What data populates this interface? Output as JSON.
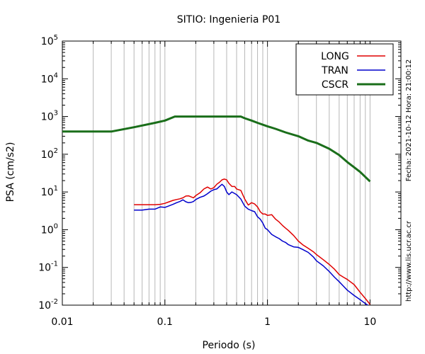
{
  "chart_data": {
    "type": "line",
    "title": "SITIO: Ingenieria P01",
    "xlabel": "Periodo (s)",
    "ylabel": "PSA (cm/s2)",
    "x_scale": "log",
    "y_scale": "log",
    "xlim": [
      0.01,
      20
    ],
    "ylim": [
      0.01,
      100000
    ],
    "x_ticks": [
      {
        "value": 0.01,
        "label": "0.01"
      },
      {
        "value": 0.1,
        "label": "0.1"
      },
      {
        "value": 1,
        "label": "1"
      },
      {
        "value": 10,
        "label": "10"
      }
    ],
    "y_ticks": [
      {
        "value": 0.01,
        "base": "10",
        "exp": "-2"
      },
      {
        "value": 0.1,
        "base": "10",
        "exp": "-1"
      },
      {
        "value": 1,
        "base": "10",
        "exp": "0"
      },
      {
        "value": 10,
        "base": "10",
        "exp": "1"
      },
      {
        "value": 100,
        "base": "10",
        "exp": "2"
      },
      {
        "value": 1000,
        "base": "10",
        "exp": "3"
      },
      {
        "value": 10000,
        "base": "10",
        "exp": "4"
      },
      {
        "value": 100000,
        "base": "10",
        "exp": "5"
      }
    ],
    "grid": "vertical-minor",
    "legend_position": "top-right",
    "side_text": [
      "Fecha: 2021-10-12  Hora: 21:00:12",
      "http://www.lis.ucr.ac.cr"
    ],
    "series": [
      {
        "name": "LONG",
        "color": "#e00000",
        "points": [
          [
            0.05,
            4.6
          ],
          [
            0.06,
            4.6
          ],
          [
            0.07,
            4.6
          ],
          [
            0.08,
            4.6
          ],
          [
            0.09,
            4.7
          ],
          [
            0.1,
            5.0
          ],
          [
            0.11,
            5.5
          ],
          [
            0.12,
            6.0
          ],
          [
            0.13,
            6.3
          ],
          [
            0.14,
            6.6
          ],
          [
            0.15,
            7.0
          ],
          [
            0.16,
            7.8
          ],
          [
            0.17,
            7.9
          ],
          [
            0.18,
            7.4
          ],
          [
            0.19,
            7.0
          ],
          [
            0.2,
            8.0
          ],
          [
            0.22,
            9.5
          ],
          [
            0.24,
            12.0
          ],
          [
            0.26,
            13.5
          ],
          [
            0.28,
            12.0
          ],
          [
            0.3,
            13.0
          ],
          [
            0.32,
            16.0
          ],
          [
            0.34,
            18.0
          ],
          [
            0.36,
            21.0
          ],
          [
            0.38,
            22.0
          ],
          [
            0.4,
            21.0
          ],
          [
            0.42,
            17.0
          ],
          [
            0.45,
            14.0
          ],
          [
            0.48,
            14.0
          ],
          [
            0.5,
            12.0
          ],
          [
            0.55,
            11.0
          ],
          [
            0.6,
            6.5
          ],
          [
            0.65,
            4.5
          ],
          [
            0.7,
            5.2
          ],
          [
            0.75,
            4.8
          ],
          [
            0.8,
            4.0
          ],
          [
            0.85,
            3.0
          ],
          [
            0.9,
            2.6
          ],
          [
            0.95,
            2.6
          ],
          [
            1.0,
            2.4
          ],
          [
            1.1,
            2.5
          ],
          [
            1.2,
            1.9
          ],
          [
            1.3,
            1.6
          ],
          [
            1.4,
            1.3
          ],
          [
            1.5,
            1.1
          ],
          [
            1.6,
            0.95
          ],
          [
            1.8,
            0.7
          ],
          [
            2.0,
            0.5
          ],
          [
            2.2,
            0.4
          ],
          [
            2.5,
            0.32
          ],
          [
            2.8,
            0.26
          ],
          [
            3.0,
            0.22
          ],
          [
            3.5,
            0.16
          ],
          [
            4.0,
            0.12
          ],
          [
            4.5,
            0.09
          ],
          [
            5.0,
            0.065
          ],
          [
            5.5,
            0.055
          ],
          [
            6.0,
            0.048
          ],
          [
            7.0,
            0.035
          ],
          [
            8.0,
            0.022
          ],
          [
            9.0,
            0.015
          ],
          [
            10.0,
            0.0105
          ]
        ]
      },
      {
        "name": "TRAN",
        "color": "#0000cc",
        "points": [
          [
            0.05,
            3.3
          ],
          [
            0.06,
            3.3
          ],
          [
            0.07,
            3.5
          ],
          [
            0.08,
            3.5
          ],
          [
            0.09,
            4.0
          ],
          [
            0.1,
            3.9
          ],
          [
            0.11,
            4.3
          ],
          [
            0.12,
            4.7
          ],
          [
            0.13,
            5.2
          ],
          [
            0.14,
            5.6
          ],
          [
            0.15,
            6.2
          ],
          [
            0.16,
            5.5
          ],
          [
            0.17,
            5.2
          ],
          [
            0.18,
            5.3
          ],
          [
            0.19,
            5.6
          ],
          [
            0.2,
            6.3
          ],
          [
            0.22,
            7.2
          ],
          [
            0.24,
            7.8
          ],
          [
            0.26,
            9.0
          ],
          [
            0.28,
            10.5
          ],
          [
            0.3,
            11.5
          ],
          [
            0.32,
            12.0
          ],
          [
            0.34,
            14.0
          ],
          [
            0.36,
            16.0
          ],
          [
            0.38,
            14.0
          ],
          [
            0.4,
            10.0
          ],
          [
            0.42,
            8.5
          ],
          [
            0.45,
            10.0
          ],
          [
            0.5,
            8.5
          ],
          [
            0.55,
            6.5
          ],
          [
            0.6,
            4.2
          ],
          [
            0.65,
            3.5
          ],
          [
            0.7,
            3.2
          ],
          [
            0.75,
            3.0
          ],
          [
            0.8,
            2.2
          ],
          [
            0.85,
            1.9
          ],
          [
            0.9,
            1.5
          ],
          [
            0.95,
            1.1
          ],
          [
            1.0,
            1.0
          ],
          [
            1.1,
            0.75
          ],
          [
            1.2,
            0.65
          ],
          [
            1.3,
            0.58
          ],
          [
            1.4,
            0.5
          ],
          [
            1.5,
            0.46
          ],
          [
            1.6,
            0.4
          ],
          [
            1.8,
            0.35
          ],
          [
            2.0,
            0.34
          ],
          [
            2.2,
            0.3
          ],
          [
            2.5,
            0.25
          ],
          [
            2.8,
            0.19
          ],
          [
            3.0,
            0.15
          ],
          [
            3.5,
            0.11
          ],
          [
            4.0,
            0.078
          ],
          [
            4.5,
            0.055
          ],
          [
            5.0,
            0.042
          ],
          [
            5.5,
            0.032
          ],
          [
            6.0,
            0.025
          ],
          [
            7.0,
            0.018
          ],
          [
            8.0,
            0.014
          ],
          [
            9.0,
            0.011
          ],
          [
            9.5,
            0.01
          ]
        ]
      },
      {
        "name": "CSCR",
        "color": "#1a6e1a",
        "points": [
          [
            0.01,
            400
          ],
          [
            0.03,
            400
          ],
          [
            0.05,
            520
          ],
          [
            0.08,
            680
          ],
          [
            0.1,
            780
          ],
          [
            0.125,
            1000
          ],
          [
            0.55,
            1000
          ],
          [
            0.6,
            900
          ],
          [
            0.7,
            780
          ],
          [
            0.8,
            680
          ],
          [
            1.0,
            550
          ],
          [
            1.2,
            470
          ],
          [
            1.5,
            380
          ],
          [
            2.0,
            300
          ],
          [
            2.5,
            230
          ],
          [
            3.0,
            200
          ],
          [
            4.0,
            140
          ],
          [
            5.0,
            95
          ],
          [
            6.0,
            62
          ],
          [
            7.0,
            45
          ],
          [
            8.0,
            34
          ],
          [
            9.0,
            25
          ],
          [
            10.0,
            19
          ]
        ]
      }
    ]
  }
}
